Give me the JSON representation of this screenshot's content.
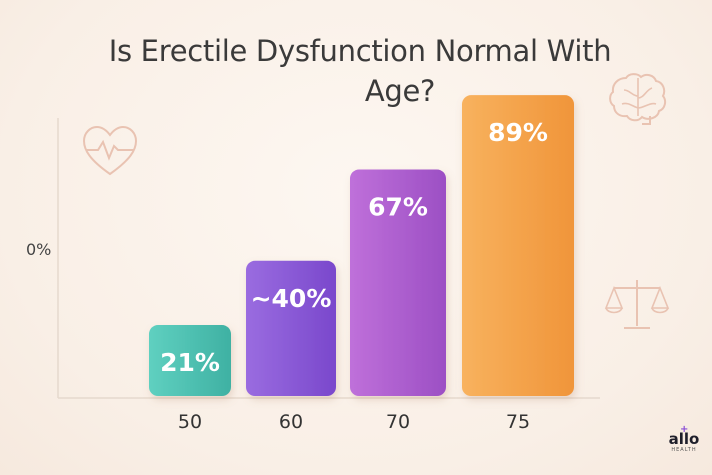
{
  "title_line1": "Is Erectile Dysfunction Normal With",
  "title_line2": "Age?",
  "chart_data": {
    "type": "bar",
    "title": "Is Erectile Dysfunction Normal With Age?",
    "categories": [
      "50",
      "60",
      "70",
      "75"
    ],
    "values": [
      21,
      40,
      67,
      89
    ],
    "data_labels": [
      "21%",
      "~40%",
      "67%",
      "89%"
    ],
    "xlabel": "",
    "ylabel": "",
    "y_tick_label": "0%",
    "ylim": [
      0,
      100
    ],
    "grid": false,
    "colors": [
      "#4ec3b4",
      "#8b5bd8",
      "#b05fcf",
      "#f6a449"
    ]
  },
  "icons": {
    "heart": "heart-pulse-icon",
    "brain": "brain-icon",
    "scales": "scales-icon"
  },
  "logo": {
    "text": "allo",
    "sub": "HEALTH",
    "accent": "#8a4fd6"
  }
}
